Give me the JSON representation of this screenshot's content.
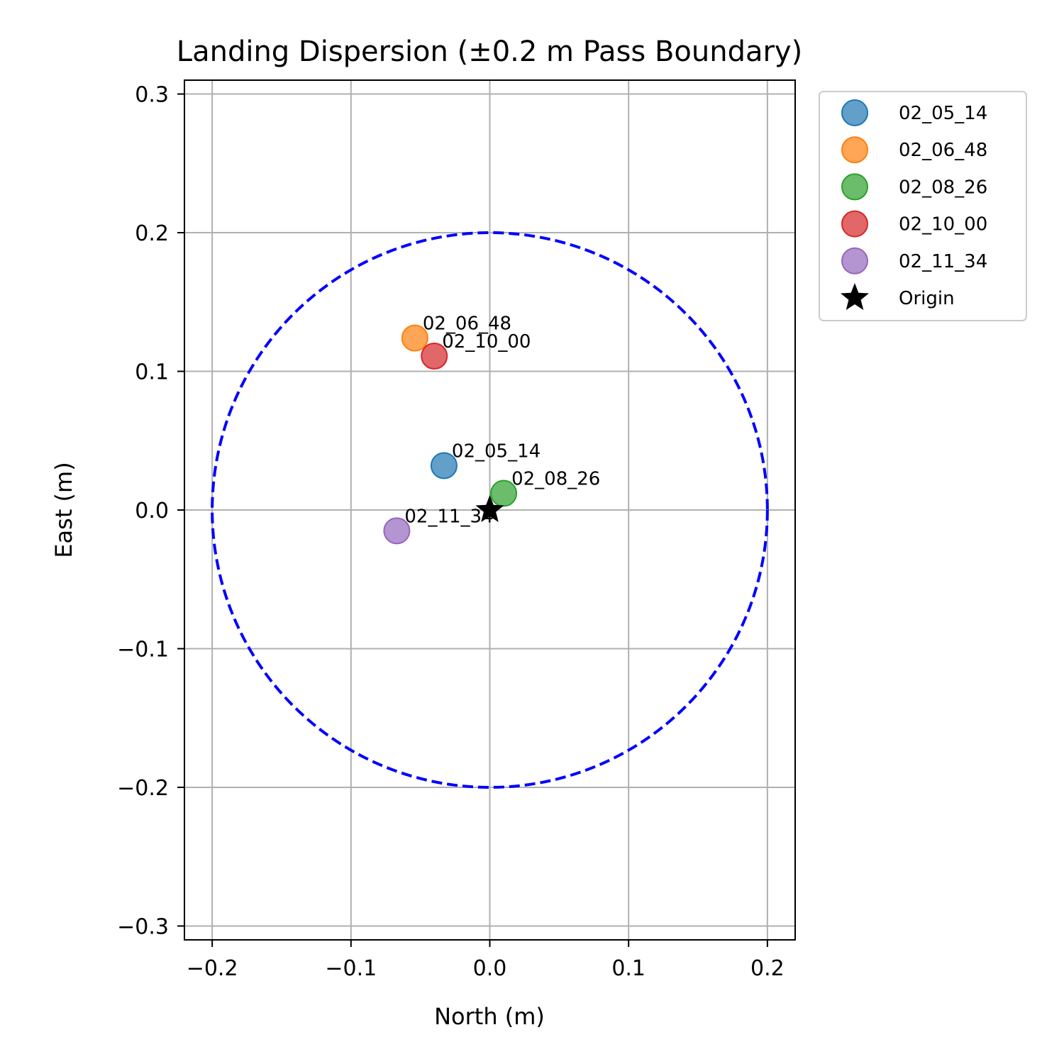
{
  "chart_data": {
    "type": "scatter",
    "title": "Landing Dispersion (±0.2 m Pass Boundary)",
    "xlabel": "North (m)",
    "ylabel": "East (m)",
    "xlim": [
      -0.22,
      0.22
    ],
    "ylim": [
      -0.31,
      0.31
    ],
    "x_ticks": [
      -0.2,
      -0.1,
      0.0,
      0.1,
      0.2
    ],
    "x_tick_labels": [
      "−0.2",
      "−0.1",
      "0.0",
      "0.1",
      "0.2"
    ],
    "y_ticks": [
      -0.3,
      -0.2,
      -0.1,
      0.0,
      0.1,
      0.2,
      0.3
    ],
    "y_tick_labels": [
      "−0.3",
      "−0.2",
      "−0.1",
      "0.0",
      "0.1",
      "0.2",
      "0.3"
    ],
    "grid": true,
    "legend_position": "outside upper right",
    "boundary": {
      "shape": "circle",
      "radius": 0.2,
      "style": "dashed",
      "color": "#0000ff"
    },
    "series": [
      {
        "name": "02_05_14",
        "label": "02_05_14",
        "x": -0.033,
        "y": 0.032,
        "color": "#1f77b4"
      },
      {
        "name": "02_06_48",
        "label": "02_06_48",
        "x": -0.054,
        "y": 0.124,
        "color": "#ff7f0e"
      },
      {
        "name": "02_08_26",
        "label": "02_08_26",
        "x": 0.01,
        "y": 0.012,
        "color": "#2ca02c"
      },
      {
        "name": "02_10_00",
        "label": "02_10_00",
        "x": -0.04,
        "y": 0.111,
        "color": "#d62728"
      },
      {
        "name": "02_11_34",
        "label": "02_11_34",
        "x": -0.067,
        "y": -0.015,
        "color": "#9467bd"
      }
    ],
    "origin": {
      "name": "Origin",
      "x": 0.0,
      "y": 0.0,
      "marker": "star",
      "color": "#000000"
    }
  }
}
